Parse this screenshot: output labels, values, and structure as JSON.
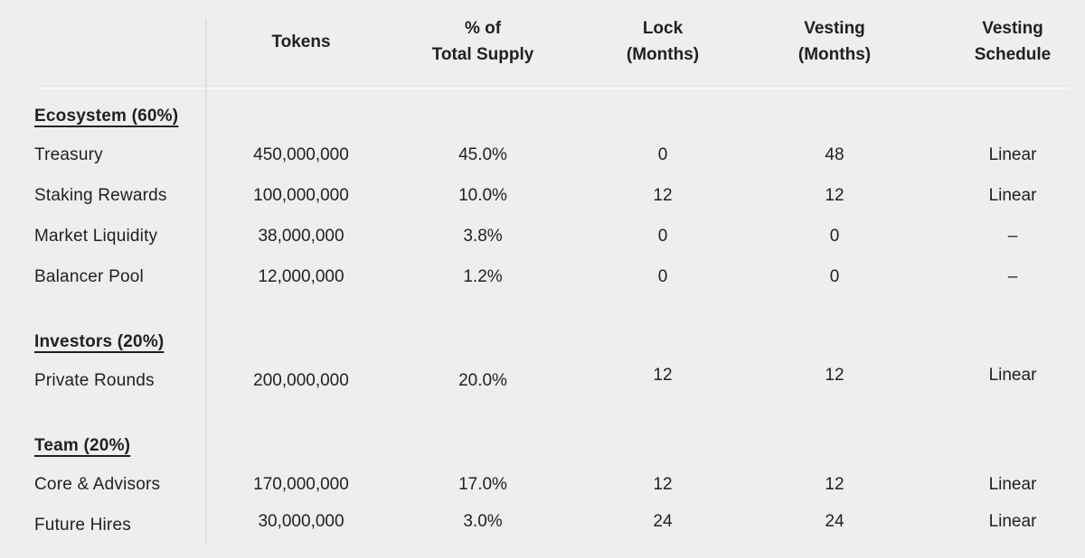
{
  "colors": {
    "background": "#efeeee",
    "text": "#212121",
    "divider": "#e2e1e1"
  },
  "table": {
    "columns": [
      {
        "key": "label",
        "label": ""
      },
      {
        "key": "tokens",
        "label": "Tokens"
      },
      {
        "key": "pct",
        "label": "% of\nTotal Supply"
      },
      {
        "key": "lock",
        "label": "Lock\n(Months)"
      },
      {
        "key": "vesting",
        "label": "Vesting\n(Months)"
      },
      {
        "key": "schedule",
        "label": "Vesting\nSchedule"
      }
    ],
    "rows": [
      {
        "id": "ecosystem-section",
        "type": "section",
        "label": "Ecosystem (60%)"
      },
      {
        "id": "treasury",
        "type": "item",
        "label": "Treasury",
        "tokens": "450,000,000",
        "pct": "45.0%",
        "lock": "0",
        "vesting": "48",
        "schedule": "Linear"
      },
      {
        "id": "staking-rewards",
        "type": "item",
        "label": "Staking Rewards",
        "tokens": "100,000,000",
        "pct": "10.0%",
        "lock": "12",
        "vesting": "12",
        "schedule": "Linear"
      },
      {
        "id": "market-liquidity",
        "type": "item",
        "label": "Market Liquidity",
        "tokens": "38,000,000",
        "pct": "3.8%",
        "lock": "0",
        "vesting": "0",
        "schedule": "–"
      },
      {
        "id": "balancer-pool",
        "type": "item",
        "label": "Balancer Pool",
        "tokens": "12,000,000",
        "pct": "1.2%",
        "lock": "0",
        "vesting": "0",
        "schedule": "–"
      },
      {
        "id": "investors-section",
        "type": "section",
        "label": "Investors (20%)"
      },
      {
        "id": "private-rounds",
        "type": "item",
        "label": "Private Rounds",
        "tokens": "200,000,000",
        "pct": "20.0%",
        "lock": "12",
        "vesting": "12",
        "schedule": "Linear"
      },
      {
        "id": "team-section",
        "type": "section",
        "label": "Team (20%)"
      },
      {
        "id": "core-advisors",
        "type": "item",
        "label": "Core & Advisors",
        "tokens": "170,000,000",
        "pct": "17.0%",
        "lock": "12",
        "vesting": "12",
        "schedule": "Linear"
      },
      {
        "id": "future-hires",
        "type": "item",
        "label": "Future Hires",
        "tokens": "30,000,000",
        "pct": "3.0%",
        "lock": "24",
        "vesting": "24",
        "schedule": "Linear"
      }
    ]
  }
}
